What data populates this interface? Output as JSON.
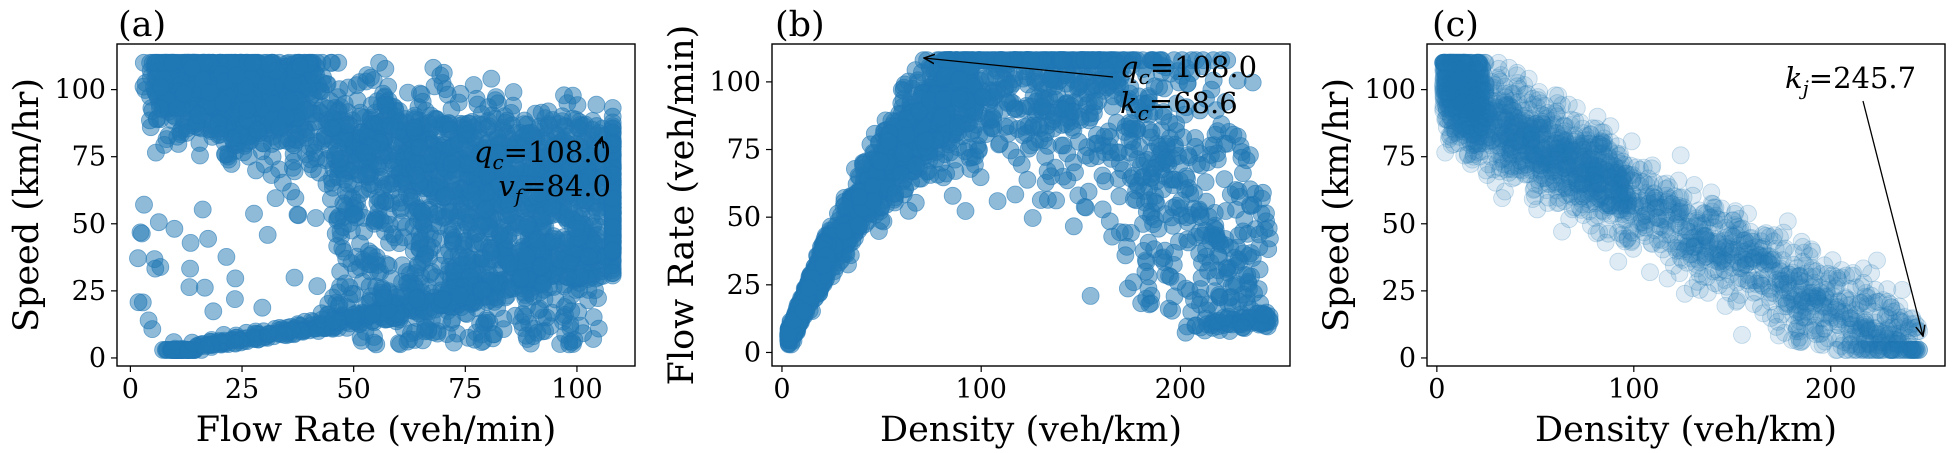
{
  "chart_data": [
    {
      "type": "scatter",
      "panel_label": "(a)",
      "xlabel": "Flow Rate (veh/min)",
      "ylabel": "Speed (km/hr)",
      "xlim": [
        -3,
        113
      ],
      "ylim": [
        -3,
        117
      ],
      "xticks": [
        "0",
        "25",
        "50",
        "75",
        "100"
      ],
      "yticks": [
        "0",
        "25",
        "50",
        "75",
        "100"
      ],
      "color": "#1f77b4",
      "alpha": 0.5,
      "annotations": [
        {
          "sym": "q",
          "sub": "c",
          "value": "=108.0",
          "point": [
            107,
            84
          ]
        },
        {
          "sym": "v",
          "sub": "f",
          "value": "=84.0"
        }
      ]
    },
    {
      "type": "scatter",
      "panel_label": "(b)",
      "xlabel": "Density (veh/km)",
      "ylabel": "Flow Rate (veh/min)",
      "xlim": [
        -5,
        255
      ],
      "ylim": [
        -5,
        114
      ],
      "xticks": [
        "0",
        "100",
        "200"
      ],
      "yticks": [
        "0",
        "25",
        "50",
        "75",
        "100"
      ],
      "color": "#1f77b4",
      "alpha": 0.5,
      "annotations": [
        {
          "sym": "q",
          "sub": "c",
          "value": "=108.0",
          "point": [
            68.6,
            108
          ]
        },
        {
          "sym": "k",
          "sub": "c",
          "value": "=68.6"
        }
      ]
    },
    {
      "type": "scatter",
      "panel_label": "(c)",
      "xlabel": "Density (veh/km)",
      "ylabel": "Speed (km/hr)",
      "xlim": [
        -5,
        258
      ],
      "ylim": [
        -3,
        117
      ],
      "xticks": [
        "0",
        "100",
        "200"
      ],
      "yticks": [
        "0",
        "25",
        "50",
        "75",
        "100"
      ],
      "color": "#1f77b4",
      "alpha": 0.15,
      "annotations": [
        {
          "sym": "k",
          "sub": "j",
          "value": "=245.7",
          "point": [
            245.7,
            7
          ]
        }
      ]
    }
  ]
}
